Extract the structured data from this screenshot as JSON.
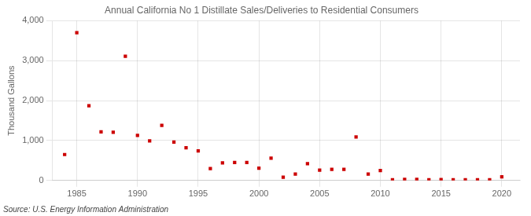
{
  "chart_data": {
    "type": "scatter",
    "title": "Annual California No 1 Distillate Sales/Deliveries to Residential Consumers",
    "ylabel": "Thousand Gallons",
    "annotations": [
      "Source: U.S. Energy Information Administration"
    ],
    "x": [
      1984,
      1985,
      1986,
      1987,
      1988,
      1989,
      1990,
      1991,
      1992,
      1993,
      1994,
      1995,
      1996,
      1997,
      1998,
      1999,
      2000,
      2001,
      2002,
      2003,
      2004,
      2005,
      2006,
      2007,
      2008,
      2009,
      2010,
      2011,
      2012,
      2013,
      2014,
      2015,
      2016,
      2017,
      2018,
      2019,
      2020
    ],
    "values": [
      650,
      3700,
      1870,
      1220,
      1210,
      3110,
      1130,
      990,
      1380,
      960,
      820,
      740,
      300,
      440,
      450,
      450,
      310,
      560,
      80,
      160,
      420,
      260,
      280,
      280,
      1090,
      160,
      250,
      20,
      30,
      30,
      20,
      25,
      20,
      20,
      20,
      20,
      90
    ],
    "color": "#cc0000",
    "marker": "square",
    "xlim": [
      1983,
      2021.5
    ],
    "xticks": [
      1985,
      1990,
      1995,
      2000,
      2005,
      2010,
      2015,
      2020
    ],
    "ylim": [
      0,
      4000
    ],
    "yticks": [
      0,
      {
        "value": 1000,
        "label": "1,000"
      },
      {
        "value": 2000,
        "label": "2,000"
      },
      {
        "value": 3000,
        "label": "3,000"
      },
      {
        "value": 4000,
        "label": "4,000"
      }
    ],
    "grid": true
  }
}
